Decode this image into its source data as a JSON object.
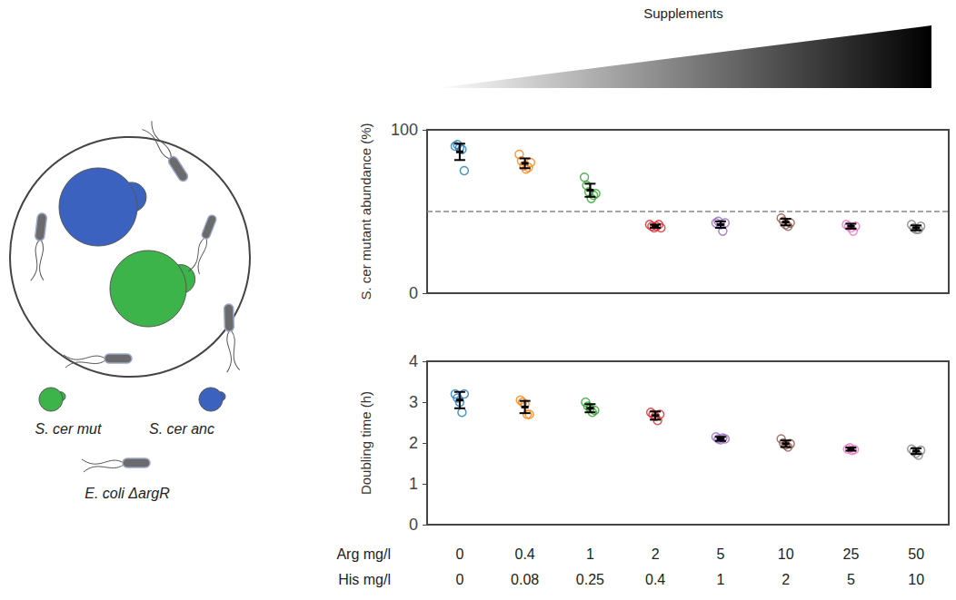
{
  "header": {
    "title": "Supplements"
  },
  "diagram": {
    "mut_label": "S. cer mut",
    "anc_label": "S. cer anc",
    "ecoli_label": "E. coli ΔargR",
    "mut_color": "#3cb44a",
    "anc_color": "#3c62c0",
    "ecoli_color": "#6b6b6b"
  },
  "chart_data": [
    {
      "type": "scatter",
      "y_label": "S. cer mutant abundance (%)",
      "categories": [
        "0",
        "0.4",
        "1",
        "2",
        "5",
        "10",
        "25",
        "50"
      ],
      "colors": [
        "#1f77b4",
        "#ff7f0e",
        "#2ca02c",
        "#d62728",
        "#9467bd",
        "#8c564b",
        "#e377c2",
        "#7f7f7f"
      ],
      "marker": "open_circle",
      "replicates": [
        [
          90,
          91,
          89,
          88,
          75
        ],
        [
          85,
          81,
          78,
          76,
          77,
          80
        ],
        [
          71,
          66,
          62,
          58,
          60,
          61
        ],
        [
          42,
          41,
          40,
          41,
          42,
          40
        ],
        [
          43,
          44,
          42,
          38,
          43
        ],
        [
          46,
          44,
          42,
          41,
          43
        ],
        [
          42,
          41,
          40,
          38,
          41
        ],
        [
          42,
          40,
          39,
          39,
          41
        ]
      ],
      "values": [
        86.5,
        79.5,
        63,
        41,
        42,
        43.5,
        41,
        40
      ],
      "errors": [
        5,
        3,
        4,
        1,
        2,
        2,
        1.5,
        1.5
      ],
      "hline": 50,
      "ylim": [
        0,
        100
      ],
      "yticks": [
        0,
        100
      ],
      "grid": false,
      "tick_labels": "y"
    },
    {
      "type": "scatter",
      "y_label": "Doubling time (h)",
      "categories": [
        "0",
        "0.4",
        "1",
        "2",
        "5",
        "10",
        "25",
        "50"
      ],
      "categories_label": "Arg mg/l",
      "subcategories": [
        "0",
        "0.08",
        "0.25",
        "0.4",
        "1",
        "2",
        "5",
        "10"
      ],
      "subcategories_label": "His mg/l",
      "colors": [
        "#1f77b4",
        "#ff7f0e",
        "#2ca02c",
        "#d62728",
        "#9467bd",
        "#8c564b",
        "#e377c2",
        "#7f7f7f"
      ],
      "marker": "open_circle",
      "replicates": [
        [
          3.2,
          3.1,
          3.0,
          2.75,
          3.2
        ],
        [
          3.05,
          3.0,
          2.95,
          2.7,
          2.7
        ],
        [
          3.0,
          2.9,
          2.85,
          2.75,
          2.8
        ],
        [
          2.75,
          2.7,
          2.65,
          2.55,
          2.7
        ],
        [
          2.15,
          2.1,
          2.08,
          2.12,
          2.1
        ],
        [
          2.1,
          2.0,
          1.95,
          1.9,
          1.98
        ],
        [
          1.85,
          1.88,
          1.82,
          1.84
        ],
        [
          1.85,
          1.8,
          1.75,
          1.7,
          1.82
        ]
      ],
      "values": [
        3.05,
        2.88,
        2.85,
        2.67,
        2.1,
        1.98,
        1.85,
        1.8
      ],
      "errors": [
        0.2,
        0.15,
        0.1,
        0.1,
        0.05,
        0.08,
        0.04,
        0.07
      ],
      "ylim": [
        0,
        4
      ],
      "yticks": [
        0,
        1,
        2,
        3,
        4
      ],
      "grid": false
    }
  ]
}
